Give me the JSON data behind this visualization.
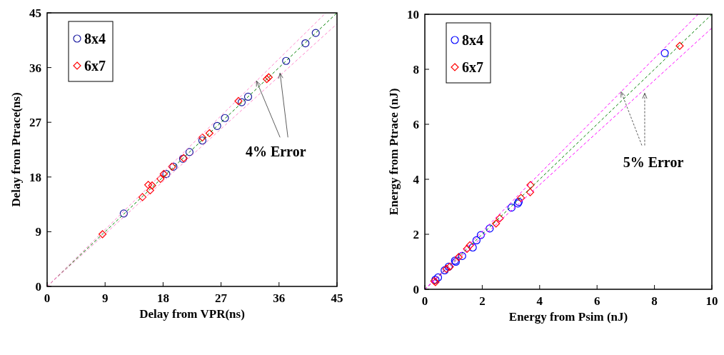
{
  "chart_data": [
    {
      "type": "scatter",
      "xlabel": "Delay from VPR(ns)",
      "ylabel": "Delay from Ptrace(ns)",
      "xlim": [
        0,
        45
      ],
      "ylim": [
        0,
        45
      ],
      "xticks": [
        0,
        9,
        18,
        27,
        36,
        45
      ],
      "yticks": [
        0,
        9,
        18,
        27,
        36,
        45
      ],
      "legend": "top left",
      "grid": false,
      "annotations": [
        {
          "text": "4% Error",
          "x": 32.5,
          "y": 33.8
        }
      ],
      "series": [
        {
          "name": "8x4",
          "color": "#1a1aa0",
          "marker": "circle",
          "x": [
            41.7,
            40.1,
            37.1,
            31.2,
            30.2,
            27.6,
            26.4,
            24.1,
            22.1,
            21.1,
            19.6,
            18.5,
            11.9
          ],
          "values": [
            41.7,
            40.0,
            37.1,
            31.2,
            30.3,
            27.7,
            26.4,
            24.0,
            22.1,
            21.0,
            19.7,
            18.5,
            12.0
          ]
        },
        {
          "name": "6x7",
          "color": "#ff0000",
          "marker": "diamond",
          "x": [
            34.4,
            34.1,
            29.7,
            25.2,
            24.1,
            21.2,
            19.4,
            18.1,
            17.6,
            16.3,
            15.7,
            16.0,
            14.8,
            8.6
          ],
          "values": [
            34.4,
            34.1,
            30.5,
            25.2,
            24.5,
            21.1,
            19.7,
            18.5,
            17.7,
            16.6,
            16.7,
            15.8,
            14.7,
            8.6
          ]
        },
        {
          "type": "line",
          "color": "#008000",
          "line_style": "dashed",
          "marker": "none",
          "x": [
            0,
            45
          ],
          "values": [
            0,
            45
          ]
        },
        {
          "type": "line",
          "color": "#ff88cc",
          "line_style": "dashed",
          "marker": "none",
          "x": [
            0,
            43.27
          ],
          "values": [
            0,
            45
          ]
        },
        {
          "type": "line",
          "color": "#ff88cc",
          "line_style": "dashed",
          "marker": "none",
          "x": [
            0,
            45
          ],
          "values": [
            0,
            43.2
          ]
        }
      ]
    },
    {
      "type": "scatter",
      "xlabel": "Energy from Psim (nJ)",
      "ylabel": "Energy from Ptrace (nJ)",
      "xlim": [
        0,
        10
      ],
      "ylim": [
        0,
        10
      ],
      "xticks": [
        0,
        2,
        4,
        6,
        8,
        10
      ],
      "yticks": [
        0,
        2,
        4,
        6,
        8,
        10
      ],
      "legend": "top left",
      "grid": false,
      "annotations": [
        {
          "text": "5% Error",
          "x": 6.84,
          "y": 7.18
        }
      ],
      "series": [
        {
          "name": "8x4",
          "color": "#0000ff",
          "marker": "circle",
          "x": [
            8.36,
            3.02,
            3.24,
            3.27,
            2.26,
            1.95,
            1.8,
            1.67,
            1.3,
            1.05,
            1.08,
            0.83,
            0.69,
            0.46,
            0.37
          ],
          "values": [
            8.59,
            2.97,
            3.12,
            3.18,
            2.21,
            1.97,
            1.78,
            1.52,
            1.21,
            1.04,
            1.0,
            0.82,
            0.69,
            0.43,
            0.35
          ]
        },
        {
          "name": "6x7",
          "color": "#ff0000",
          "marker": "diamond",
          "x": [
            8.88,
            3.68,
            3.67,
            3.35,
            2.61,
            2.48,
            1.57,
            1.47,
            1.18,
            0.87,
            0.75,
            0.37,
            0.33
          ],
          "values": [
            8.85,
            3.79,
            3.53,
            3.32,
            2.58,
            2.39,
            1.6,
            1.47,
            1.17,
            0.82,
            0.74,
            0.26,
            0.3
          ]
        },
        {
          "type": "line",
          "color": "#008000",
          "line_style": "dashed",
          "marker": "none",
          "x": [
            0,
            10
          ],
          "values": [
            0,
            10
          ]
        },
        {
          "type": "line",
          "color": "#ff00ff",
          "line_style": "dashed",
          "marker": "none",
          "x": [
            0,
            9.52
          ],
          "values": [
            0,
            10
          ]
        },
        {
          "type": "line",
          "color": "#ff00ff",
          "line_style": "dashed",
          "marker": "none",
          "x": [
            0,
            10
          ],
          "values": [
            0,
            9.5
          ]
        }
      ]
    }
  ]
}
